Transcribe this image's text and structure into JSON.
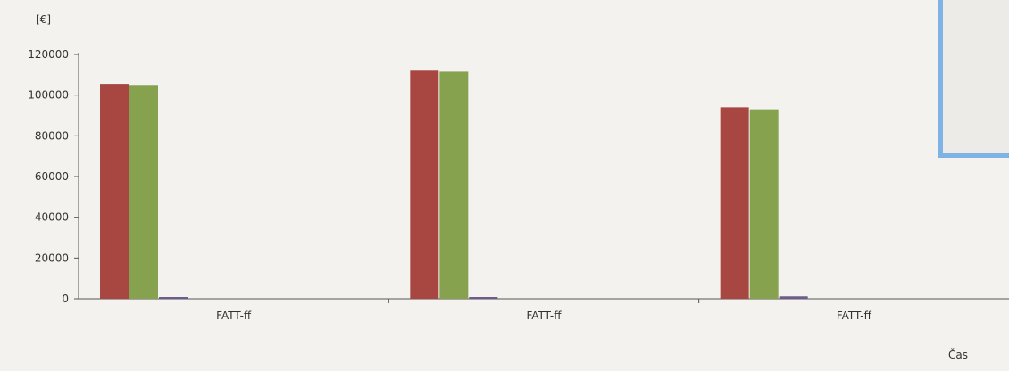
{
  "chart_data": {
    "type": "bar",
    "title": "",
    "ylabel": "[€]",
    "xlabel": "Čas",
    "ylim": [
      0,
      120000
    ],
    "yticks": [
      0,
      20000,
      40000,
      60000,
      80000,
      100000,
      120000
    ],
    "categories": [
      "FATT-ff",
      "FATT-ff",
      "FATT-ff"
    ],
    "grid": false,
    "legend": "top-right",
    "series": [
      {
        "color": "#a84642",
        "values": [
          105500,
          112000,
          94000
        ]
      },
      {
        "color": "#87a24e",
        "values": [
          105000,
          111500,
          93000
        ]
      },
      {
        "color": "#6e5a8e",
        "values": [
          600,
          500,
          1200
        ]
      },
      {
        "color": "#3f97b0",
        "values": [
          0,
          0,
          0
        ]
      }
    ]
  }
}
